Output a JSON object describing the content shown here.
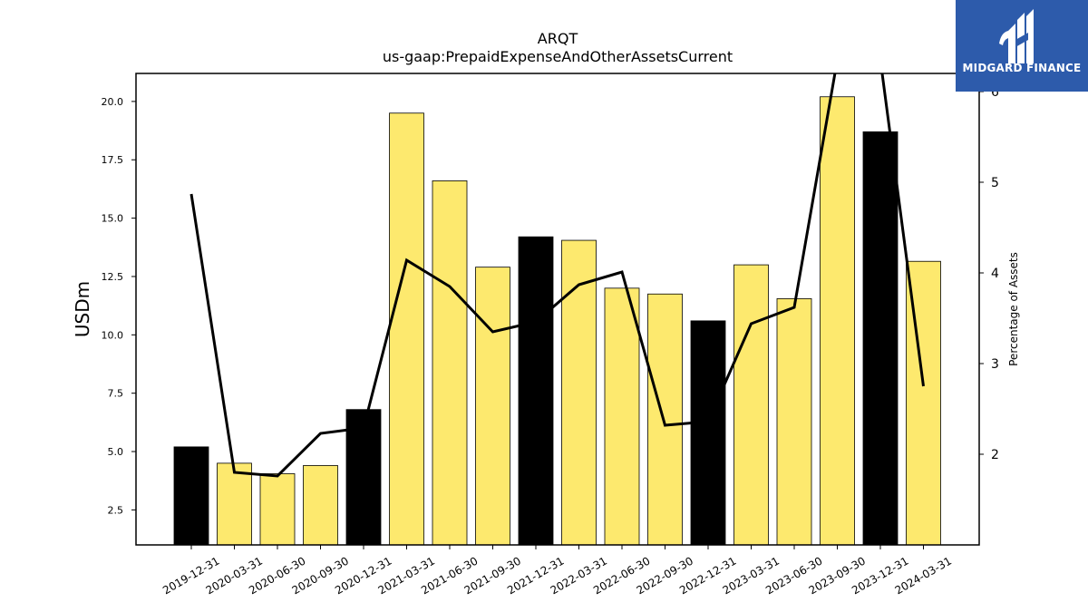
{
  "chart_data": {
    "type": "bar",
    "title": "ARQT",
    "subtitle": "us-gaap:PrepaidExpenseAndOtherAssetsCurrent",
    "ylabel": "USDm",
    "ylabel_right": "Percentage of Assets",
    "ylim": [
      1.0,
      21.2
    ],
    "yticks": [
      2.5,
      5.0,
      7.5,
      10.0,
      12.5,
      15.0,
      17.5,
      20.0
    ],
    "ylim_right": [
      1.0,
      6.2
    ],
    "yticks_right": [
      2,
      3,
      4,
      5,
      6
    ],
    "categories": [
      "2019-12-31",
      "2020-03-31",
      "2020-06-30",
      "2020-09-30",
      "2020-12-31",
      "2021-03-31",
      "2021-06-30",
      "2021-09-30",
      "2021-12-31",
      "2022-03-31",
      "2022-06-30",
      "2022-09-30",
      "2022-12-31",
      "2023-03-31",
      "2023-06-30",
      "2023-09-30",
      "2023-12-31",
      "2024-03-31"
    ],
    "values": [
      5.2,
      4.5,
      4.05,
      4.4,
      6.8,
      19.5,
      16.6,
      12.9,
      14.2,
      14.05,
      12.0,
      11.75,
      10.6,
      13.0,
      11.55,
      20.2,
      18.7,
      13.15
    ],
    "bar_kinds": [
      "year-end",
      "quarter",
      "quarter",
      "quarter",
      "year-end",
      "quarter",
      "quarter",
      "quarter",
      "year-end",
      "quarter",
      "quarter",
      "quarter",
      "year-end",
      "quarter",
      "quarter",
      "quarter",
      "year-end",
      "quarter"
    ],
    "line_values": [
      4.87,
      1.8,
      1.76,
      2.23,
      2.29,
      4.14,
      3.85,
      3.35,
      3.46,
      3.87,
      4.01,
      2.32,
      2.36,
      3.44,
      3.62,
      6.35,
      6.35,
      2.75
    ],
    "colors": {
      "quarter_bar": "#fde96e",
      "year_end_bar": "#000000",
      "line": "#000000"
    }
  },
  "logo": {
    "text": "MIDGARD FINANCE"
  }
}
